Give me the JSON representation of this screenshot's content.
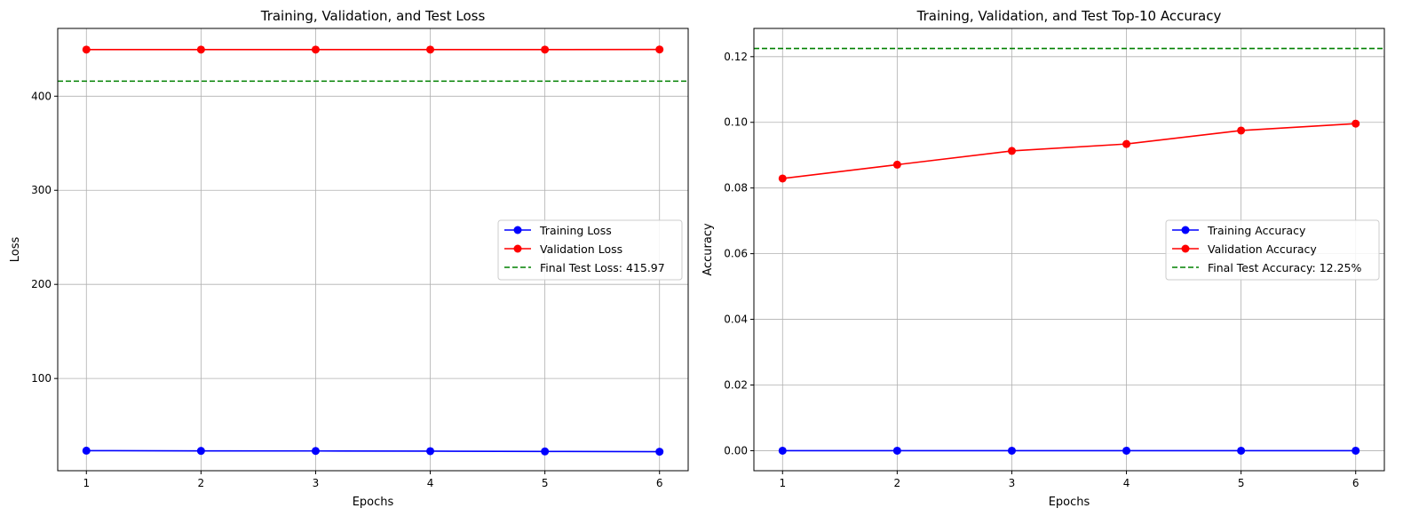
{
  "chart_data": [
    {
      "type": "line",
      "title": "Training, Validation, and Test Loss",
      "xlabel": "Epochs",
      "ylabel": "Loss",
      "x": [
        1,
        2,
        3,
        4,
        5,
        6
      ],
      "xlim": [
        0.75,
        6.25
      ],
      "ylim": [
        2,
        472
      ],
      "xticks": [
        1,
        2,
        3,
        4,
        5,
        6
      ],
      "xtick_labels": [
        "1",
        "2",
        "3",
        "4",
        "5",
        "6"
      ],
      "yticks": [
        100,
        200,
        300,
        400
      ],
      "ytick_labels": [
        "100",
        "200",
        "300",
        "400"
      ],
      "grid": true,
      "legend_position": "center-right",
      "series": [
        {
          "name": "Training Loss",
          "color": "#0000ff",
          "marker": "circle",
          "values": [
            23.3,
            23.1,
            23.0,
            22.8,
            22.5,
            22.2
          ]
        },
        {
          "name": "Validation Loss",
          "color": "#ff0000",
          "marker": "circle",
          "values": [
            449.5,
            449.5,
            449.5,
            449.5,
            449.5,
            449.6
          ]
        }
      ],
      "reference_line": {
        "name": "Final Test Loss: 415.97",
        "value": 415.97,
        "color": "#008000",
        "style": "dashed"
      }
    },
    {
      "type": "line",
      "title": "Training, Validation, and Test Top-10 Accuracy",
      "xlabel": "Epochs",
      "ylabel": "Accuracy",
      "x": [
        1,
        2,
        3,
        4,
        5,
        6
      ],
      "xlim": [
        0.75,
        6.25
      ],
      "ylim": [
        -0.0061,
        0.1286
      ],
      "xticks": [
        1,
        2,
        3,
        4,
        5,
        6
      ],
      "xtick_labels": [
        "1",
        "2",
        "3",
        "4",
        "5",
        "6"
      ],
      "yticks": [
        0,
        0.02,
        0.04,
        0.06,
        0.08,
        0.1,
        0.12
      ],
      "ytick_labels": [
        "0.00",
        "0.02",
        "0.04",
        "0.06",
        "0.08",
        "0.10",
        "0.12"
      ],
      "grid": true,
      "legend_position": "center-right",
      "series": [
        {
          "name": "Training Accuracy",
          "color": "#0000ff",
          "marker": "circle",
          "values": [
            0.0,
            0.0,
            0.0,
            0.0,
            0.0,
            0.0
          ]
        },
        {
          "name": "Validation Accuracy",
          "color": "#ff0000",
          "marker": "circle",
          "values": [
            0.0829,
            0.0871,
            0.0913,
            0.0934,
            0.0975,
            0.0996
          ]
        }
      ],
      "reference_line": {
        "name": "Final Test Accuracy: 12.25%",
        "value": 0.1225,
        "color": "#008000",
        "style": "dashed"
      }
    }
  ]
}
